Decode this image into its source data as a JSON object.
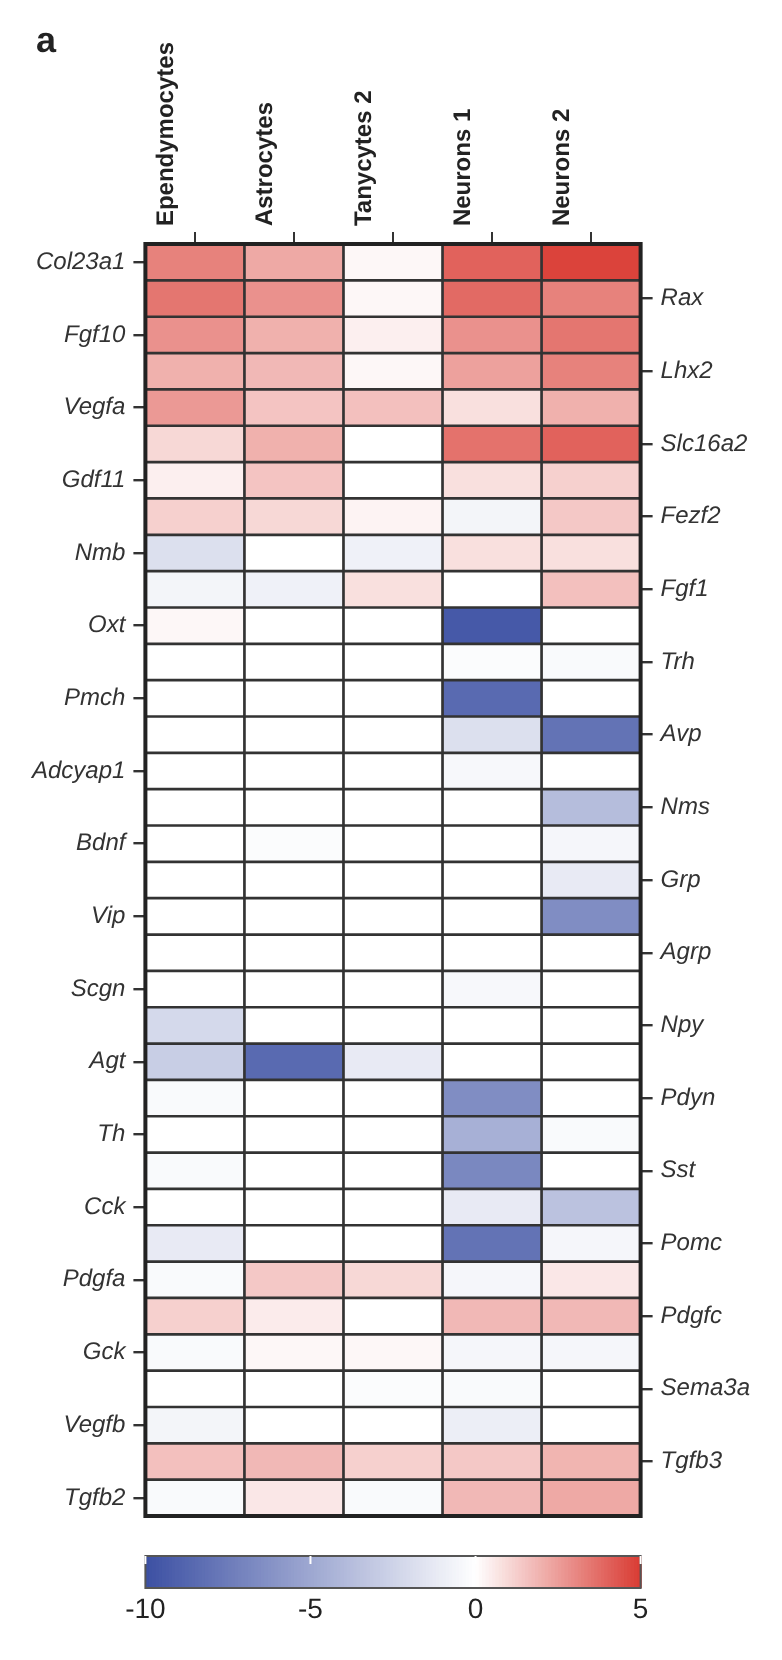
{
  "chart_data": {
    "type": "heatmap",
    "annotations": [
      "a"
    ],
    "categories": [
      "Ependymocytes",
      "Astrocytes",
      "Tanycytes 2",
      "Neurons 1",
      "Neurons 2"
    ],
    "y_categories": [
      "Col23a1",
      null,
      "Fgf10",
      null,
      "Vegfa",
      null,
      "Gdf11",
      null,
      "Nmb",
      null,
      "Oxt",
      null,
      "Pmch",
      null,
      "Adcyap1",
      null,
      "Bdnf",
      null,
      "Vip",
      null,
      "Scgn",
      null,
      "Agt",
      null,
      "Th",
      null,
      "Cck",
      null,
      "Pdgfa",
      null,
      "Gck",
      null,
      "Vegfb",
      null,
      "Tgfb2"
    ],
    "y2_categories": [
      null,
      "Rax",
      null,
      "Lhx2",
      null,
      "Slc16a2",
      null,
      "Fezf2",
      null,
      "Fgf1",
      null,
      "Trh",
      null,
      "Avp",
      null,
      "Nms",
      null,
      "Grp",
      null,
      "Agrp",
      null,
      "Npy",
      null,
      "Pdyn",
      null,
      "Sst",
      null,
      "Pomc",
      null,
      "Pdgfc",
      null,
      "Sema3a",
      null,
      "Tgfb3",
      null
    ],
    "cells": [
      [
        3.2,
        2.2,
        0.2,
        4.0,
        4.8
      ],
      [
        3.5,
        2.8,
        0.2,
        3.8,
        3.2
      ],
      [
        2.8,
        2.0,
        0.4,
        2.8,
        3.5
      ],
      [
        2.0,
        1.8,
        0.2,
        2.4,
        3.2
      ],
      [
        2.6,
        1.5,
        1.6,
        0.8,
        2.0
      ],
      [
        1.0,
        2.0,
        0,
        3.6,
        4.0
      ],
      [
        0.4,
        1.5,
        0,
        0.8,
        1.2
      ],
      [
        1.2,
        1.0,
        0.3,
        -0.6,
        1.4
      ],
      [
        -1.8,
        0,
        -0.8,
        0.8,
        0.8
      ],
      [
        -0.6,
        -0.8,
        0.8,
        0,
        1.6
      ],
      [
        0.2,
        0,
        0,
        -9.5,
        0
      ],
      [
        0,
        0,
        0,
        -0.2,
        -0.3
      ],
      [
        0,
        0,
        0,
        -8.5,
        0
      ],
      [
        0,
        0,
        0,
        -1.8,
        -8.0
      ],
      [
        0,
        0,
        0,
        -0.4,
        0
      ],
      [
        0,
        0,
        0,
        0,
        -3.8
      ],
      [
        0,
        -0.2,
        0,
        0,
        -0.5
      ],
      [
        0,
        0,
        0,
        0,
        -1.2
      ],
      [
        0,
        0,
        0,
        0,
        -6.5
      ],
      [
        0,
        0,
        0,
        0,
        0
      ],
      [
        0,
        0,
        0,
        -0.4,
        0
      ],
      [
        -2.2,
        0,
        0,
        0,
        0
      ],
      [
        -2.8,
        -8.5,
        -1.2,
        0,
        0
      ],
      [
        -0.3,
        0,
        0,
        -6.5,
        0
      ],
      [
        0,
        0,
        0,
        -4.5,
        -0.3
      ],
      [
        -0.3,
        0,
        0,
        -6.8,
        0
      ],
      [
        0,
        0,
        0,
        -1.2,
        -3.5
      ],
      [
        -1.2,
        0,
        0,
        -8.0,
        -0.5
      ],
      [
        -0.3,
        1.4,
        1.0,
        -0.5,
        0.6
      ],
      [
        1.2,
        0.5,
        0,
        1.8,
        1.8
      ],
      [
        -0.3,
        0.2,
        0.2,
        -0.5,
        -0.5
      ],
      [
        0,
        0,
        -0.2,
        -0.3,
        0
      ],
      [
        -0.6,
        0,
        0,
        -1.0,
        0
      ],
      [
        1.6,
        1.8,
        1.2,
        1.4,
        1.9
      ],
      [
        -0.3,
        0.6,
        -0.3,
        1.8,
        2.2
      ]
    ],
    "clim": [
      -10,
      5
    ],
    "cticks": [
      -10,
      -5,
      0,
      5
    ]
  }
}
